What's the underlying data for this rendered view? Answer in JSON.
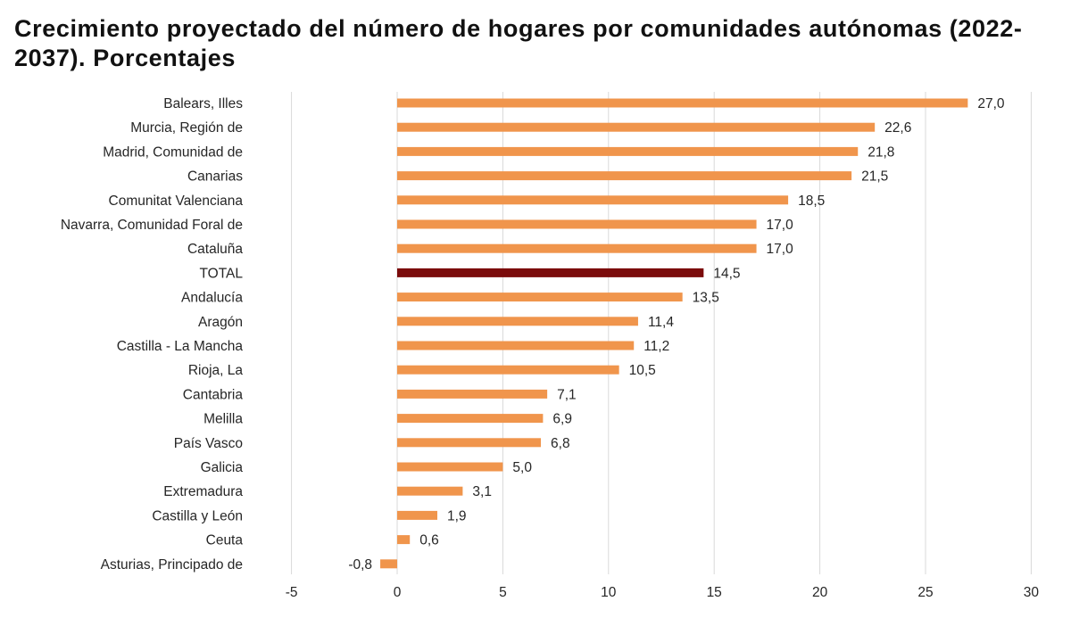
{
  "chart_data": {
    "type": "bar",
    "orientation": "horizontal",
    "title": "Crecimiento proyectado del número de hogares por comunidades autónomas (2022-2037). Porcentajes",
    "xlabel": "",
    "ylabel": "",
    "xlim": [
      -5,
      30
    ],
    "xticks": [
      -5,
      0,
      5,
      10,
      15,
      20,
      25,
      30
    ],
    "grid": "vertical",
    "legend": "none",
    "categories": [
      "Balears, Illes",
      "Murcia, Región de",
      "Madrid, Comunidad de",
      "Canarias",
      "Comunitat Valenciana",
      "Navarra, Comunidad Foral de",
      "Cataluña",
      "TOTAL",
      "Andalucía",
      "Aragón",
      "Castilla - La Mancha",
      "Rioja, La",
      "Cantabria",
      "Melilla",
      "País Vasco",
      "Galicia",
      "Extremadura",
      "Castilla y León",
      "Ceuta",
      "Asturias, Principado de"
    ],
    "values": [
      27.0,
      22.6,
      21.8,
      21.5,
      18.5,
      17.0,
      17.0,
      14.5,
      13.5,
      11.4,
      11.2,
      10.5,
      7.1,
      6.9,
      6.8,
      5.0,
      3.1,
      1.9,
      0.6,
      -0.8
    ],
    "value_labels": [
      "27,0",
      "22,6",
      "21,8",
      "21,5",
      "18,5",
      "17,0",
      "17,0",
      "14,5",
      "13,5",
      "11,4",
      "11,2",
      "10,5",
      "7,1",
      "6,9",
      "6,8",
      "5,0",
      "3,1",
      "1,9",
      "0,6",
      "-0,8"
    ],
    "highlight_category": "TOTAL",
    "colors": {
      "bar": "#f0954c",
      "highlight": "#7b0c0c",
      "grid": "#d9d9d9",
      "text": "#262626",
      "title": "#111111"
    }
  }
}
